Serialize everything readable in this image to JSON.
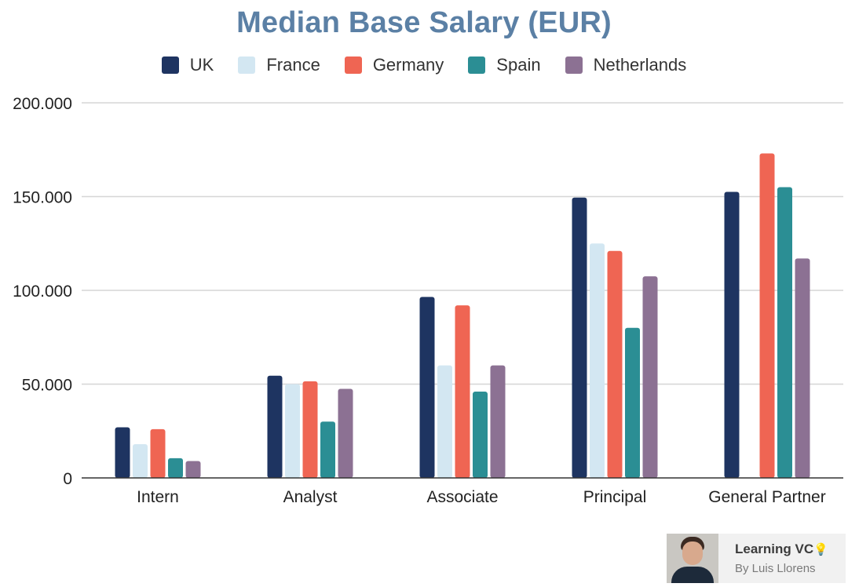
{
  "chart_data": {
    "type": "bar",
    "title": "Median Base Salary (EUR)",
    "categories": [
      "Intern",
      "Analyst",
      "Associate",
      "Principal",
      "General Partner"
    ],
    "series": [
      {
        "name": "UK",
        "color": "#1e3461",
        "values": [
          27000,
          54500,
          96500,
          149500,
          152500
        ]
      },
      {
        "name": "France",
        "color": "#d3e7f2",
        "values": [
          18000,
          50000,
          60000,
          125000,
          null
        ]
      },
      {
        "name": "Germany",
        "color": "#ef6553",
        "values": [
          26000,
          51500,
          92000,
          121000,
          173000
        ]
      },
      {
        "name": "Spain",
        "color": "#2b8e94",
        "values": [
          10500,
          30000,
          46000,
          80000,
          155000
        ]
      },
      {
        "name": "Netherlands",
        "color": "#8c7193",
        "values": [
          9000,
          47500,
          60000,
          107500,
          117000
        ]
      }
    ],
    "ylim": [
      0,
      200000
    ],
    "yticks": [
      0,
      50000,
      100000,
      150000,
      200000
    ],
    "ytick_labels": [
      "0",
      "50.000",
      "100.000",
      "150.000",
      "200.000"
    ],
    "xlabel": "",
    "ylabel": "",
    "grid": true,
    "legend_position": "top"
  },
  "watermark": {
    "title": "Learning VC",
    "icon": "lightbulb-icon",
    "subtitle": "By Luis Llorens"
  }
}
